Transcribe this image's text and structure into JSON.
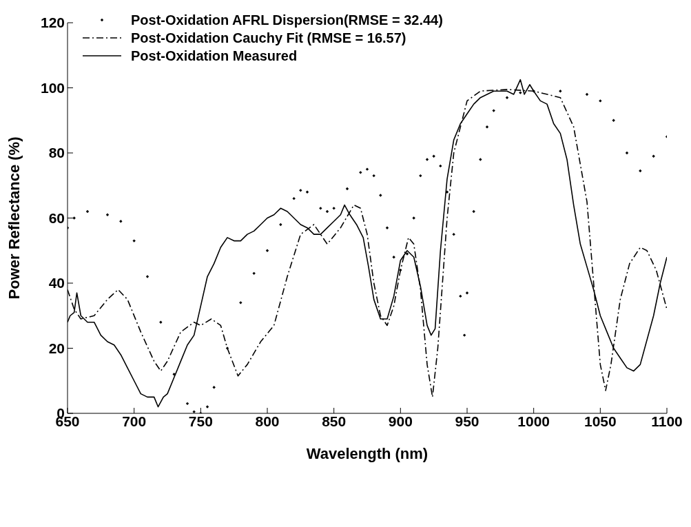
{
  "chart_data": {
    "type": "line",
    "xlabel": "Wavelength  (nm)",
    "ylabel": "Power Reflectance  (%)",
    "xlim": [
      650,
      1100
    ],
    "xticks": [
      650,
      700,
      750,
      800,
      850,
      900,
      950,
      1000,
      1050,
      1100
    ],
    "ylim": [
      0,
      120
    ],
    "yticks": [
      0,
      20,
      40,
      60,
      80,
      100,
      120
    ],
    "grid": false,
    "legend": "top left",
    "series": [
      {
        "name": "Post-Oxidation AFRL Dispersion(RMSE = 32.44)",
        "type": "scatter",
        "marker": "diamond",
        "color": "#000000",
        "x": [
          650,
          655,
          665,
          680,
          690,
          700,
          710,
          720,
          730,
          740,
          745,
          750,
          755,
          760,
          770,
          780,
          790,
          800,
          810,
          820,
          825,
          830,
          840,
          845,
          850,
          860,
          870,
          875,
          880,
          885,
          890,
          895,
          900,
          905,
          910,
          915,
          920,
          925,
          930,
          935,
          940,
          945,
          948,
          950,
          955,
          960,
          965,
          970,
          980,
          990,
          1000,
          1020,
          1040,
          1050,
          1060,
          1070,
          1080,
          1090,
          1100
        ],
        "values": [
          57,
          60,
          62,
          61,
          59,
          53,
          42,
          28,
          12,
          3,
          0.5,
          0,
          2,
          8,
          20,
          34,
          43,
          50,
          58,
          66,
          68.5,
          68,
          63,
          62,
          63,
          69,
          74,
          75,
          73,
          67,
          57,
          48,
          44,
          49,
          60,
          73,
          78,
          79,
          76,
          68,
          55,
          36,
          24,
          37,
          62,
          78,
          88,
          93,
          97,
          98.5,
          99,
          99,
          98,
          96,
          90,
          80,
          74.5,
          79,
          85
        ]
      },
      {
        "name": "Post-Oxidation Cauchy Fit (RMSE = 16.57)",
        "line_style": "dashed",
        "color": "#000000",
        "x": [
          650,
          655,
          660,
          670,
          680,
          688,
          695,
          705,
          715,
          720,
          725,
          735,
          745,
          750,
          758,
          765,
          770,
          778,
          785,
          795,
          805,
          815,
          825,
          835,
          845,
          855,
          865,
          870,
          875,
          880,
          885,
          890,
          895,
          900,
          906,
          910,
          915,
          920,
          924,
          928,
          935,
          940,
          950,
          960,
          980,
          1000,
          1020,
          1030,
          1040,
          1045,
          1050,
          1054,
          1058,
          1065,
          1072,
          1080,
          1085,
          1092,
          1100
        ],
        "values": [
          38,
          32,
          29,
          30,
          35,
          38,
          35,
          25,
          16,
          13,
          16,
          25,
          28,
          27,
          29,
          27,
          20,
          11.5,
          15,
          22,
          27,
          42,
          55,
          58,
          52,
          57,
          64,
          63,
          55,
          40,
          30,
          27,
          33,
          44,
          54,
          52,
          38,
          15,
          5,
          20,
          60,
          80,
          96,
          99,
          99.5,
          99,
          97,
          88,
          65,
          40,
          15,
          7,
          15,
          35,
          46,
          51,
          50,
          44,
          32
        ]
      },
      {
        "name": "Post-Oxidation Measured",
        "line_style": "solid",
        "color": "#000000",
        "x": [
          650,
          652,
          655,
          657,
          660,
          665,
          670,
          675,
          680,
          685,
          690,
          695,
          700,
          705,
          710,
          715,
          718,
          722,
          725,
          730,
          735,
          740,
          745,
          750,
          755,
          760,
          765,
          770,
          775,
          780,
          785,
          790,
          795,
          800,
          805,
          810,
          815,
          820,
          825,
          830,
          835,
          840,
          845,
          850,
          855,
          858,
          862,
          867,
          872,
          876,
          880,
          885,
          890,
          895,
          900,
          905,
          910,
          915,
          920,
          923,
          926,
          930,
          935,
          940,
          945,
          950,
          955,
          960,
          970,
          980,
          985,
          990,
          993,
          997,
          1000,
          1005,
          1010,
          1015,
          1020,
          1025,
          1030,
          1035,
          1040,
          1045,
          1050,
          1055,
          1060,
          1065,
          1070,
          1075,
          1080,
          1090,
          1095,
          1100
        ],
        "values": [
          28,
          30,
          31,
          37,
          30,
          28,
          28,
          24,
          22,
          21,
          18,
          14,
          10,
          6,
          5,
          5,
          2,
          5,
          6,
          11,
          16,
          21,
          24,
          33,
          42,
          46,
          51,
          54,
          53,
          53,
          55,
          56,
          58,
          60,
          61,
          63,
          62,
          60,
          58,
          57,
          55,
          55,
          57,
          59,
          61,
          64,
          61,
          58,
          54,
          45,
          35,
          29,
          29,
          36,
          47,
          50,
          48,
          39,
          27,
          24,
          26,
          50,
          72,
          84,
          89,
          92,
          95,
          97,
          99,
          99,
          98,
          102.5,
          98,
          101,
          99,
          96,
          95,
          89,
          86,
          78,
          64,
          52,
          45,
          38,
          30,
          25,
          20,
          17,
          14,
          13,
          15,
          30,
          40,
          48
        ]
      }
    ]
  }
}
